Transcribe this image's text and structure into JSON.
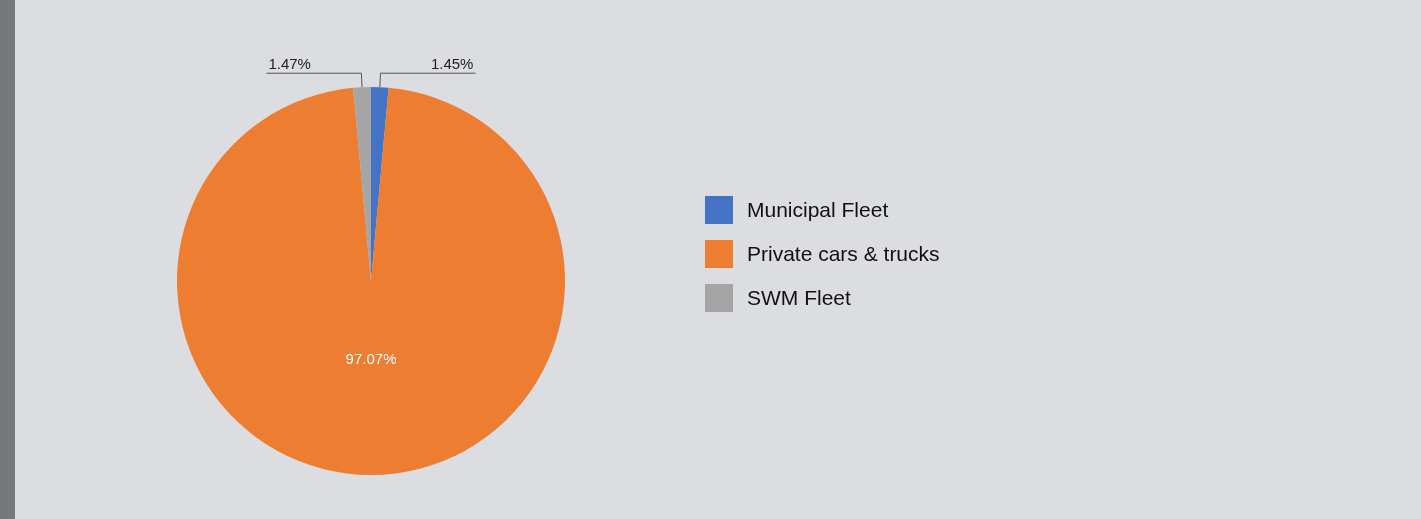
{
  "chart_data": {
    "type": "pie",
    "categories": [
      "Municipal Fleet",
      "Private cars & trucks",
      "SWM Fleet"
    ],
    "values": [
      1.45,
      97.07,
      1.47
    ],
    "value_labels": [
      "1.45%",
      "97.07%",
      "1.47%"
    ],
    "colors": [
      "#4472c4",
      "#ed7d31",
      "#a5a5a5"
    ],
    "legend": "right"
  }
}
